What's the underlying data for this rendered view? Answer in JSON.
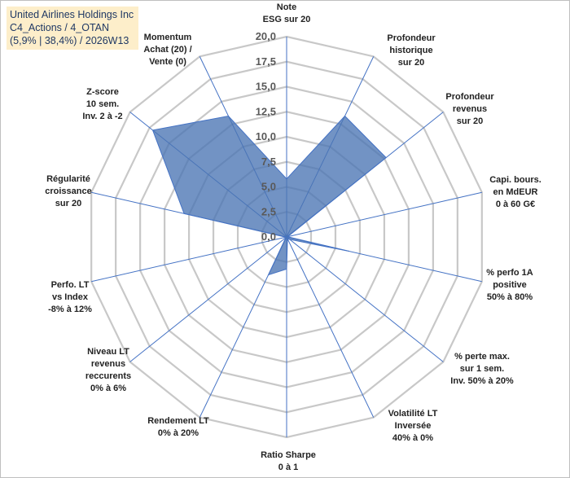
{
  "title": {
    "line1": "United Airlines Holdings Inc",
    "line2": "C4_Actions / 4_OTAN",
    "line3": "(5,9% | 38,4%) / 2026W13"
  },
  "chart_data": {
    "type": "radar",
    "radial_range": [
      0,
      20
    ],
    "radial_ticks": [
      "0,0",
      "2,5",
      "5,0",
      "7,5",
      "10,0",
      "12,5",
      "15,0",
      "17,5",
      "20,0"
    ],
    "categories": [
      "Note ESG sur 20",
      "Profondeur historique sur 20",
      "Profondeur revenus sur 20",
      "Capi. bours. en MdEUR 0 à 60 G€",
      "% perfo 1A positive 50% à 80%",
      "% perte max. sur 1 sem. Inv. 50% à 20%",
      "Volatilité LT Inversée 40% à 0%",
      "Ratio Sharpe 0 à 1",
      "Rendement LT 0% à 20%",
      "Niveau LT revenus reccurents 0% à 6%",
      "Perfo. LT vs Index -8% à 12%",
      "Régularité croissance sur 20",
      "Z-score 10 sem. Inv. 2 à -2",
      "Momentum Achat (20) / Vente (0)"
    ],
    "category_lines": [
      [
        "Note",
        "ESG sur 20"
      ],
      [
        "Profondeur",
        "historique",
        "sur 20"
      ],
      [
        "Profondeur",
        "revenus",
        "sur 20"
      ],
      [
        "Capi. bours.",
        "en MdEUR",
        "0 à 60 G€"
      ],
      [
        "% perfo 1A",
        "positive",
        "50% à 80%"
      ],
      [
        "% perte max.",
        "sur 1 sem.",
        "Inv. 50% à 20%"
      ],
      [
        "Volatilité LT",
        "Inversée",
        "40% à 0%"
      ],
      [
        "Ratio Sharpe",
        "0 à 1"
      ],
      [
        "Rendement LT",
        "0% à 20%"
      ],
      [
        "Niveau LT",
        "revenus",
        "reccurents",
        "0% à 6%"
      ],
      [
        "Perfo. LT",
        "vs Index",
        "-8% à 12%"
      ],
      [
        "Régularité",
        "croissance",
        "sur 20"
      ],
      [
        "Z-score",
        "10 sem.",
        "Inv. 2 à -2"
      ],
      [
        "Momentum",
        "Achat (20) /",
        "Vente (0)"
      ]
    ],
    "series": [
      {
        "name": "United Airlines Holdings Inc",
        "values": [
          5.8,
          13.4,
          12.7,
          0.1,
          6.4,
          0.4,
          0.2,
          3.2,
          4.2,
          0.1,
          0.1,
          10.5,
          17.1,
          13.4
        ],
        "color": "#4a74b4"
      }
    ]
  }
}
